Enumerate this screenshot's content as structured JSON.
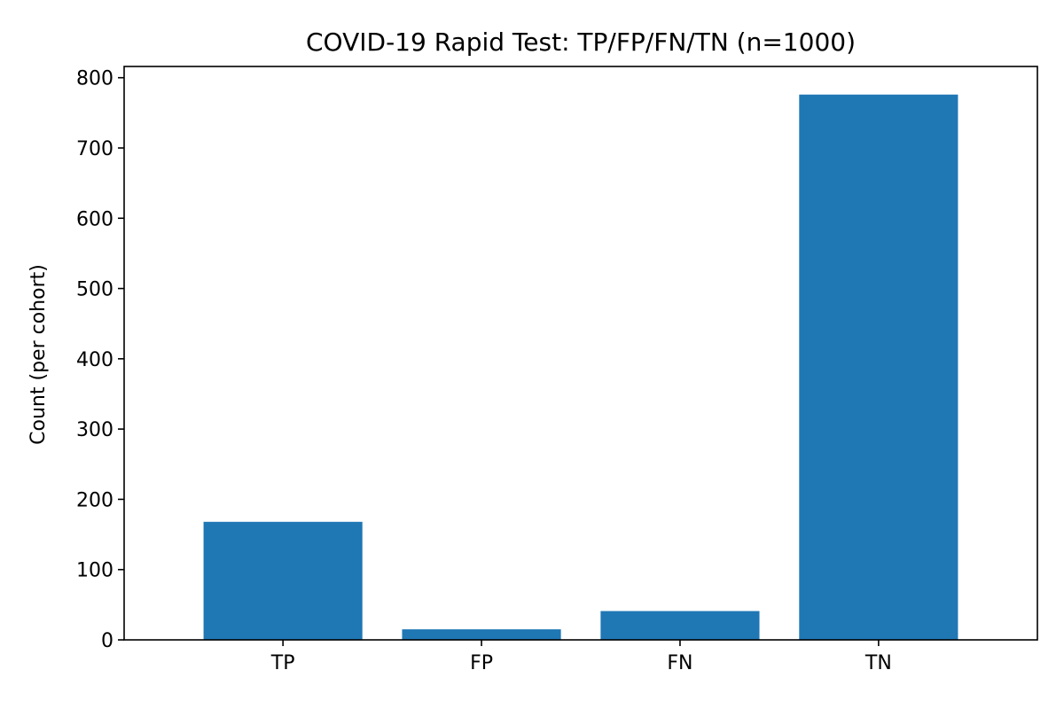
{
  "chart_data": {
    "type": "bar",
    "title": "COVID-19 Rapid Test: TP/FP/FN/TN (n=1000)",
    "xlabel": "",
    "ylabel": "Count (per cohort)",
    "categories": [
      "TP",
      "FP",
      "FN",
      "TN"
    ],
    "values": [
      168,
      15,
      41,
      776
    ],
    "ylim": [
      0,
      816
    ],
    "yticks": [
      0,
      100,
      200,
      300,
      400,
      500,
      600,
      700,
      800
    ],
    "grid": false,
    "legend": "none",
    "bar_color": "#1f77b4"
  }
}
